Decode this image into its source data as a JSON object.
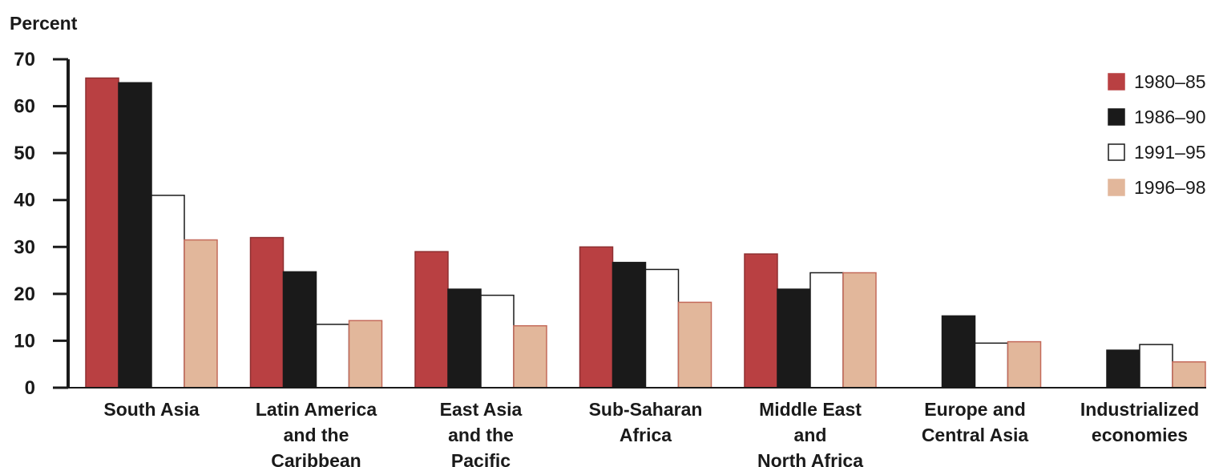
{
  "chart_data": {
    "type": "bar",
    "ylabel": "Percent",
    "ylim": [
      0,
      70
    ],
    "yticks": [
      0,
      10,
      20,
      30,
      40,
      50,
      60,
      70
    ],
    "grid": false,
    "legend_position": "right",
    "categories": [
      [
        "South Asia"
      ],
      [
        "Latin America",
        "and the",
        "Caribbean"
      ],
      [
        "East Asia",
        "and the",
        "Pacific"
      ],
      [
        "Sub-Saharan",
        "Africa"
      ],
      [
        "Middle East",
        "and",
        "North Africa"
      ],
      [
        "Europe and",
        "Central Asia"
      ],
      [
        "Industrialized",
        "economies"
      ]
    ],
    "series": [
      {
        "name": "1980–85",
        "color": "#b94042",
        "values": [
          66,
          32,
          29,
          30,
          28.5,
          null,
          null
        ]
      },
      {
        "name": "1986–90",
        "color": "#1a1a1a",
        "values": [
          65,
          24.7,
          21,
          26.7,
          21,
          15.3,
          8
        ]
      },
      {
        "name": "1991–95",
        "color": "#ffffff",
        "values": [
          41,
          13.5,
          19.7,
          25.2,
          24.5,
          9.5,
          9.2
        ]
      },
      {
        "name": "1996–98",
        "color": "#e2b79b",
        "values": [
          31.5,
          14.3,
          13.2,
          18.2,
          24.5,
          9.8,
          5.5
        ]
      }
    ]
  }
}
